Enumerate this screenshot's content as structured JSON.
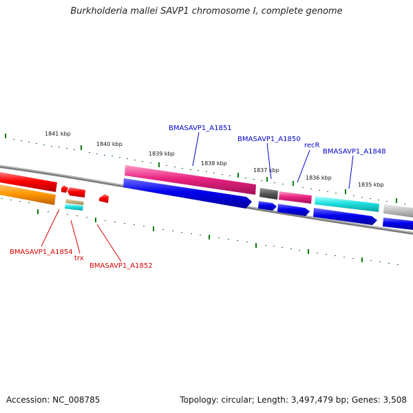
{
  "title": "Burkholderia mallei SAVP1 chromosome I, complete genome",
  "footer": {
    "accession": "Accession: NC_008785",
    "topology": "Topology: circular; Length: 3,497,479 bp; Genes: 3,508"
  },
  "colors": {
    "backbone": "#888888",
    "tick": "#0a7a0a",
    "blue_label": "#0000cc",
    "red_label": "#dd0000"
  },
  "scale": [
    "1841 kbp",
    "1840 kbp",
    "1839 kbp",
    "1838 kbp",
    "1837 kbp",
    "1836 kbp",
    "1835 kbp"
  ],
  "labels": {
    "a1851": "BMASAVP1_A1851",
    "a1850": "BMASAVP1_A1850",
    "recR": "recR",
    "a1848": "BMASAVP1_A1848",
    "a1854": "BMASAVP1_A1854",
    "trx": "trx",
    "a1852": "BMASAVP1_A1852"
  }
}
